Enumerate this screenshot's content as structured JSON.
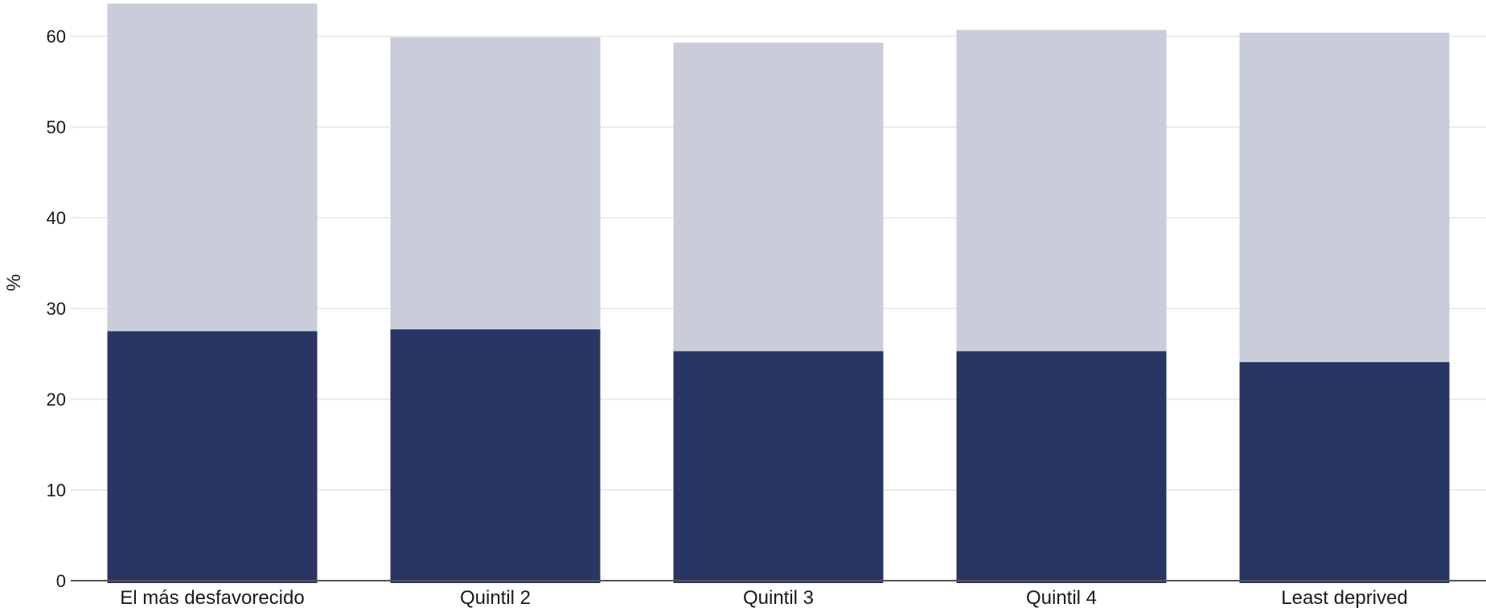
{
  "chart_data": {
    "type": "bar",
    "stacked": true,
    "categories": [
      "El más desfavorecido",
      "Quintil 2",
      "Quintil 3",
      "Quintil 4",
      "Least deprived"
    ],
    "series": [
      {
        "values": [
          27.5,
          27.7,
          25.3,
          25.3,
          24.1
        ],
        "color": "#293563"
      },
      {
        "values": [
          36.1,
          32.2,
          34.0,
          35.4,
          36.3
        ],
        "color": "#c9ccd9"
      }
    ],
    "ylabel": "%",
    "ylim": [
      0,
      64
    ],
    "yticks": [
      0,
      10,
      20,
      30,
      40,
      50,
      60
    ],
    "grid": true,
    "grid_color": "#ebebeb",
    "axis_color": "#555555"
  }
}
